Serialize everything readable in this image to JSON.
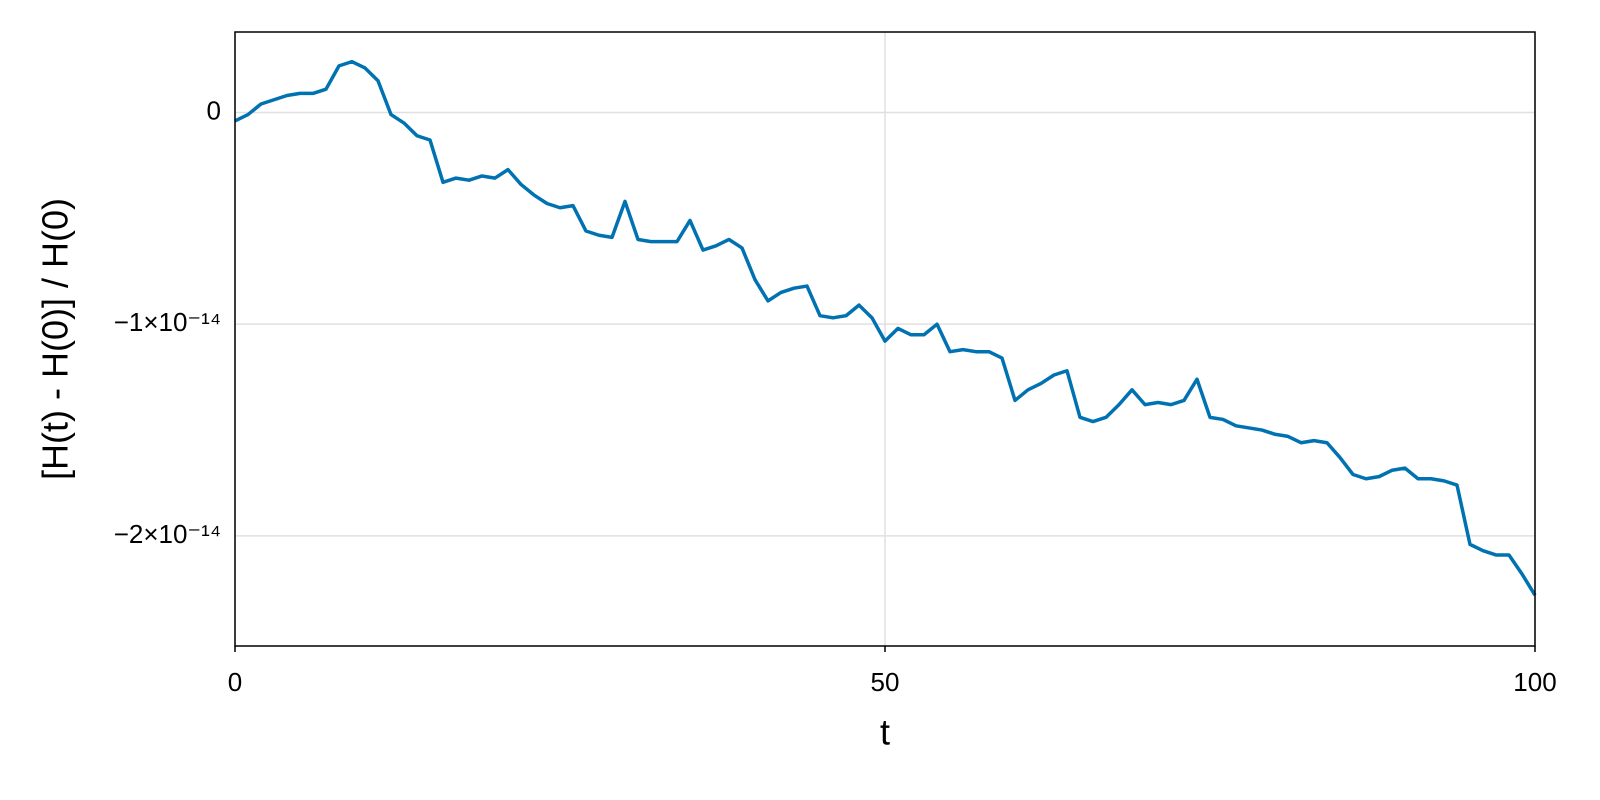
{
  "chart_data": {
    "type": "line",
    "x_label": "t",
    "y_label": "[H(t) - H(0)] / H(0)",
    "x": [
      0,
      1,
      2,
      3,
      4,
      5,
      6,
      7,
      8,
      9,
      10,
      11,
      12,
      13,
      14,
      15,
      16,
      17,
      18,
      19,
      20,
      21,
      22,
      23,
      24,
      25,
      26,
      27,
      28,
      29,
      30,
      31,
      32,
      33,
      34,
      35,
      36,
      37,
      38,
      39,
      40,
      41,
      42,
      43,
      44,
      45,
      46,
      47,
      48,
      49,
      50,
      51,
      52,
      53,
      54,
      55,
      56,
      57,
      58,
      59,
      60,
      61,
      62,
      63,
      64,
      65,
      66,
      67,
      68,
      69,
      70,
      71,
      72,
      73,
      74,
      75,
      76,
      77,
      78,
      79,
      80,
      81,
      82,
      83,
      84,
      85,
      86,
      87,
      88,
      89,
      90,
      91,
      92,
      93,
      94,
      95,
      96,
      97,
      98,
      99,
      100
    ],
    "series": [
      {
        "color": "#0072b2",
        "values": [
          -4e-16,
          -1e-16,
          4e-16,
          6e-16,
          8e-16,
          9e-16,
          9e-16,
          1.1e-15,
          2.2e-15,
          2.4e-15,
          2.1e-15,
          1.5e-15,
          -1e-16,
          -5e-16,
          -1.1e-15,
          -1.3e-15,
          -3.3e-15,
          -3.1e-15,
          -3.2e-15,
          -3e-15,
          -3.1e-15,
          -2.7e-15,
          -3.4e-15,
          -3.9e-15,
          -4.3e-15,
          -4.5e-15,
          -4.4e-15,
          -5.6e-15,
          -5.8e-15,
          -5.9e-15,
          -4.2e-15,
          -6e-15,
          -6.1e-15,
          -6.1e-15,
          -6.1e-15,
          -5.1e-15,
          -6.5e-15,
          -6.3e-15,
          -6e-15,
          -6.4e-15,
          -7.9e-15,
          -8.9e-15,
          -8.5e-15,
          -8.3e-15,
          -8.2e-15,
          -9.6e-15,
          -9.7e-15,
          -9.6e-15,
          -9.1e-15,
          -9.7e-15,
          -1.08e-14,
          -1.02e-14,
          -1.05e-14,
          -1.05e-14,
          -1e-14,
          -1.13e-14,
          -1.12e-14,
          -1.13e-14,
          -1.13e-14,
          -1.16e-14,
          -1.36e-14,
          -1.31e-14,
          -1.28e-14,
          -1.24e-14,
          -1.22e-14,
          -1.44e-14,
          -1.46e-14,
          -1.44e-14,
          -1.38e-14,
          -1.31e-14,
          -1.38e-14,
          -1.37e-14,
          -1.38e-14,
          -1.36e-14,
          -1.26e-14,
          -1.44e-14,
          -1.45e-14,
          -1.48e-14,
          -1.49e-14,
          -1.5e-14,
          -1.52e-14,
          -1.53e-14,
          -1.56e-14,
          -1.55e-14,
          -1.56e-14,
          -1.63e-14,
          -1.71e-14,
          -1.73e-14,
          -1.72e-14,
          -1.69e-14,
          -1.68e-14,
          -1.73e-14,
          -1.73e-14,
          -1.74e-14,
          -1.76e-14,
          -2.04e-14,
          -2.07e-14,
          -2.09e-14,
          -2.09e-14,
          -2.18e-14,
          -2.28e-14
        ]
      }
    ],
    "xlim": [
      0,
      100
    ],
    "xticks": [
      0,
      50,
      100
    ],
    "ylim": [
      -2.52e-14,
      3.8e-15
    ],
    "yticks": [
      0,
      {
        "value": -1e-14,
        "label": "−1×10⁻¹⁴"
      },
      {
        "value": -2e-14,
        "label": "−2×10⁻¹⁴"
      }
    ],
    "grid": true
  }
}
